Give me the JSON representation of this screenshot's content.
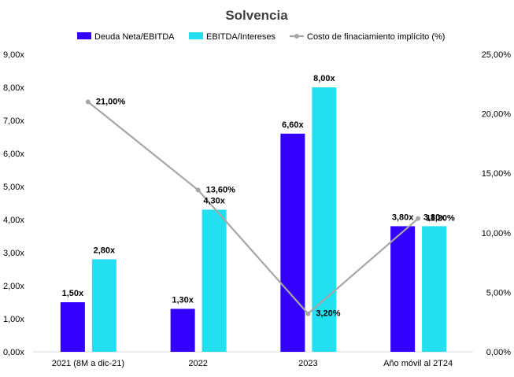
{
  "chart_data": {
    "type": "bar",
    "title": "Solvencia",
    "categories": [
      "2021 (8M a dic-21)",
      "2022",
      "2023",
      "Año móvil al 2T24"
    ],
    "series": [
      {
        "name": "Deuda Neta/EBITDA",
        "type": "bar",
        "axis": "left",
        "color": "#3300ff",
        "values": [
          1.5,
          1.3,
          6.6,
          3.8
        ],
        "labels": [
          "1,50x",
          "1,30x",
          "6,60x",
          "3,80x"
        ]
      },
      {
        "name": "EBITDA/Intereses",
        "type": "bar",
        "axis": "left",
        "color": "#22e0f0",
        "values": [
          2.8,
          4.3,
          8.0,
          3.8
        ],
        "labels": [
          "2,80x",
          "4,30x",
          "8,00x",
          "3,80x"
        ]
      },
      {
        "name": "Costo de finaciamiento implícito (%)",
        "type": "line",
        "axis": "right",
        "color": "#a6a6a6",
        "values": [
          21.0,
          13.6,
          3.2,
          11.2
        ],
        "labels": [
          "21,00%",
          "13,60%",
          "3,20%",
          "11,20%"
        ]
      }
    ],
    "y_left": {
      "ylim": [
        0,
        9
      ],
      "ticks": [
        0,
        1,
        2,
        3,
        4,
        5,
        6,
        7,
        8,
        9
      ],
      "tick_labels": [
        "0,00x",
        "1,00x",
        "2,00x",
        "3,00x",
        "4,00x",
        "5,00x",
        "6,00x",
        "7,00x",
        "8,00x",
        "9,00x"
      ]
    },
    "y_right": {
      "ylim": [
        0,
        25
      ],
      "ticks": [
        0,
        5,
        10,
        15,
        20,
        25
      ],
      "tick_labels": [
        "0,00%",
        "5,00%",
        "10,00%",
        "15,00%",
        "20,00%",
        "25,00%"
      ]
    },
    "legend_position": "top",
    "grid": false,
    "colors": {
      "title": "#404040",
      "text": "#000000",
      "axis": "#d9d9d9"
    }
  }
}
